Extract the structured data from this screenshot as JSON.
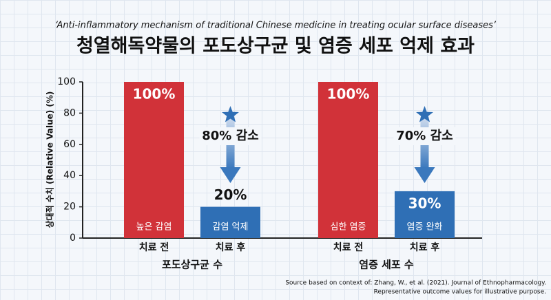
{
  "chart_data": {
    "type": "grouped-bar",
    "subtitle": "‘Anti-inflammatory mechanism of traditional Chinese medicine in treating ocular surface diseases’",
    "title": "청열해독약물의 포도상구균 및 염증 세포 억제 효과",
    "ylabel": "상대적 수치 (Relative Value) (%)",
    "ylim": [
      0,
      100
    ],
    "yticks": [
      0,
      20,
      40,
      60,
      80,
      100
    ],
    "groups": [
      {
        "name": "포도상구균 수",
        "categories": [
          "치료 전",
          "치료 후"
        ],
        "values": [
          100,
          20
        ],
        "value_labels": [
          "100%",
          "20%"
        ],
        "bar_labels": [
          "높은 감염",
          "감염 억제"
        ],
        "colors": [
          "#d13239",
          "#2f6fb5"
        ],
        "annotation": "80% 감소"
      },
      {
        "name": "염증 세포 수",
        "categories": [
          "치료 전",
          "치료 후"
        ],
        "values": [
          100,
          30
        ],
        "value_labels": [
          "100%",
          "30%"
        ],
        "bar_labels": [
          "심한 염증",
          "염증 완화"
        ],
        "colors": [
          "#d13239",
          "#2f6fb5"
        ],
        "annotation": "70% 감소"
      }
    ],
    "source": [
      "Source based on context of: Zhang, W., et al. (2021). Journal of Ethnopharmacology.",
      "Representative outcome values for illustrative purpose."
    ]
  }
}
